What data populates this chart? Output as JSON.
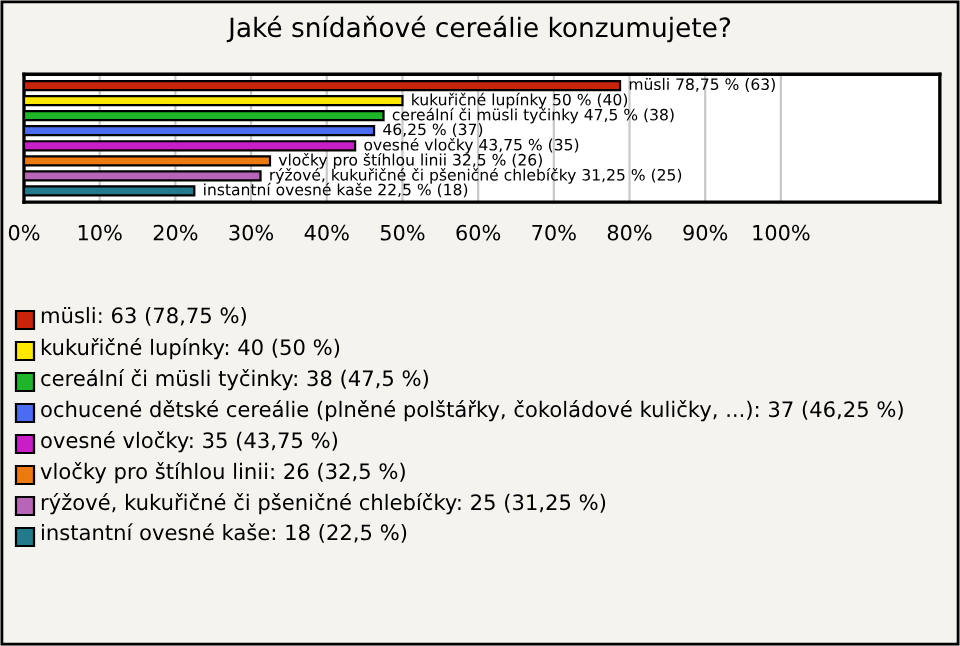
{
  "chart_data": {
    "type": "bar",
    "title": "Jaké snídaňové cereálie konzumujete?",
    "orientation": "horizontal",
    "categories": [
      null,
      null,
      null,
      null,
      null,
      null,
      null,
      null
    ],
    "xlim": [
      0,
      121
    ],
    "xticks": [
      {
        "value": 0,
        "label": "0%"
      },
      {
        "value": 10,
        "label": "10%"
      },
      {
        "value": 20,
        "label": "20%"
      },
      {
        "value": 30,
        "label": "30%"
      },
      {
        "value": 40,
        "label": "40%"
      },
      {
        "value": 50,
        "label": "50%"
      },
      {
        "value": 60,
        "label": "60%"
      },
      {
        "value": 70,
        "label": "70%"
      },
      {
        "value": 80,
        "label": "80%"
      },
      {
        "value": 90,
        "label": "90%"
      },
      {
        "value": 100,
        "label": "100%"
      }
    ],
    "grid": "x",
    "legend": "bottom",
    "series": [
      {
        "name": "müsli: 63 (78,75 %)",
        "color": "#c8240c",
        "values": [
          78.75,
          null,
          null,
          null,
          null,
          null,
          null,
          null
        ],
        "value_labels": [
          "müsli 78,75 % (63)",
          null,
          null,
          null,
          null,
          null,
          null,
          null
        ]
      },
      {
        "name": "kukuřičné lupínky: 40 (50 %)",
        "color": "#ffe800",
        "values": [
          null,
          50,
          null,
          null,
          null,
          null,
          null,
          null
        ],
        "value_labels": [
          null,
          "kukuřičné lupínky 50 % (40)",
          null,
          null,
          null,
          null,
          null,
          null
        ]
      },
      {
        "name": "cereální či müsli tyčinky: 38 (47,5 %)",
        "color": "#1fb52a",
        "values": [
          null,
          null,
          47.5,
          null,
          null,
          null,
          null,
          null
        ],
        "value_labels": [
          null,
          null,
          "cereální či müsli tyčinky 47,5 % (38)",
          null,
          null,
          null,
          null,
          null
        ]
      },
      {
        "name": "ochucené dětské cereálie (plněné polštářky, čokoládové kuličky, ...): 37 (46,25 %)",
        "color": "#4a6cf0",
        "values": [
          null,
          null,
          null,
          46.25,
          null,
          null,
          null,
          null
        ],
        "value_labels": [
          null,
          null,
          null,
          "46,25 % (37)",
          null,
          null,
          null,
          null
        ]
      },
      {
        "name": "ovesné vločky: 35 (43,75 %)",
        "color": "#c81ec8",
        "values": [
          null,
          null,
          null,
          null,
          43.75,
          null,
          null,
          null
        ],
        "value_labels": [
          null,
          null,
          null,
          null,
          "ovesné vločky 43,75 % (35)",
          null,
          null,
          null
        ]
      },
      {
        "name": "vločky pro štíhlou linii: 26 (32,5 %)",
        "color": "#ec7a10",
        "values": [
          null,
          null,
          null,
          null,
          null,
          32.5,
          null,
          null
        ],
        "value_labels": [
          null,
          null,
          null,
          null,
          null,
          "vločky pro štíhlou linii 32,5 % (26)",
          null,
          null
        ]
      },
      {
        "name": "rýžové, kukuřičné či pšeničné chlebíčky: 25 (31,25 %)",
        "color": "#b864b8",
        "values": [
          null,
          null,
          null,
          null,
          null,
          null,
          31.25,
          null
        ],
        "value_labels": [
          null,
          null,
          null,
          null,
          null,
          null,
          "rýžové, kukuřičné či pšeničné chlebíčky 31,25 % (25)",
          null
        ]
      },
      {
        "name": "instantní ovesné kaše: 18 (22,5 %)",
        "color": "#237a8c",
        "values": [
          null,
          null,
          null,
          null,
          null,
          null,
          null,
          22.5
        ],
        "value_labels": [
          null,
          null,
          null,
          null,
          null,
          null,
          null,
          "instantní ovesné kaše 22,5 % (18)"
        ]
      }
    ]
  }
}
